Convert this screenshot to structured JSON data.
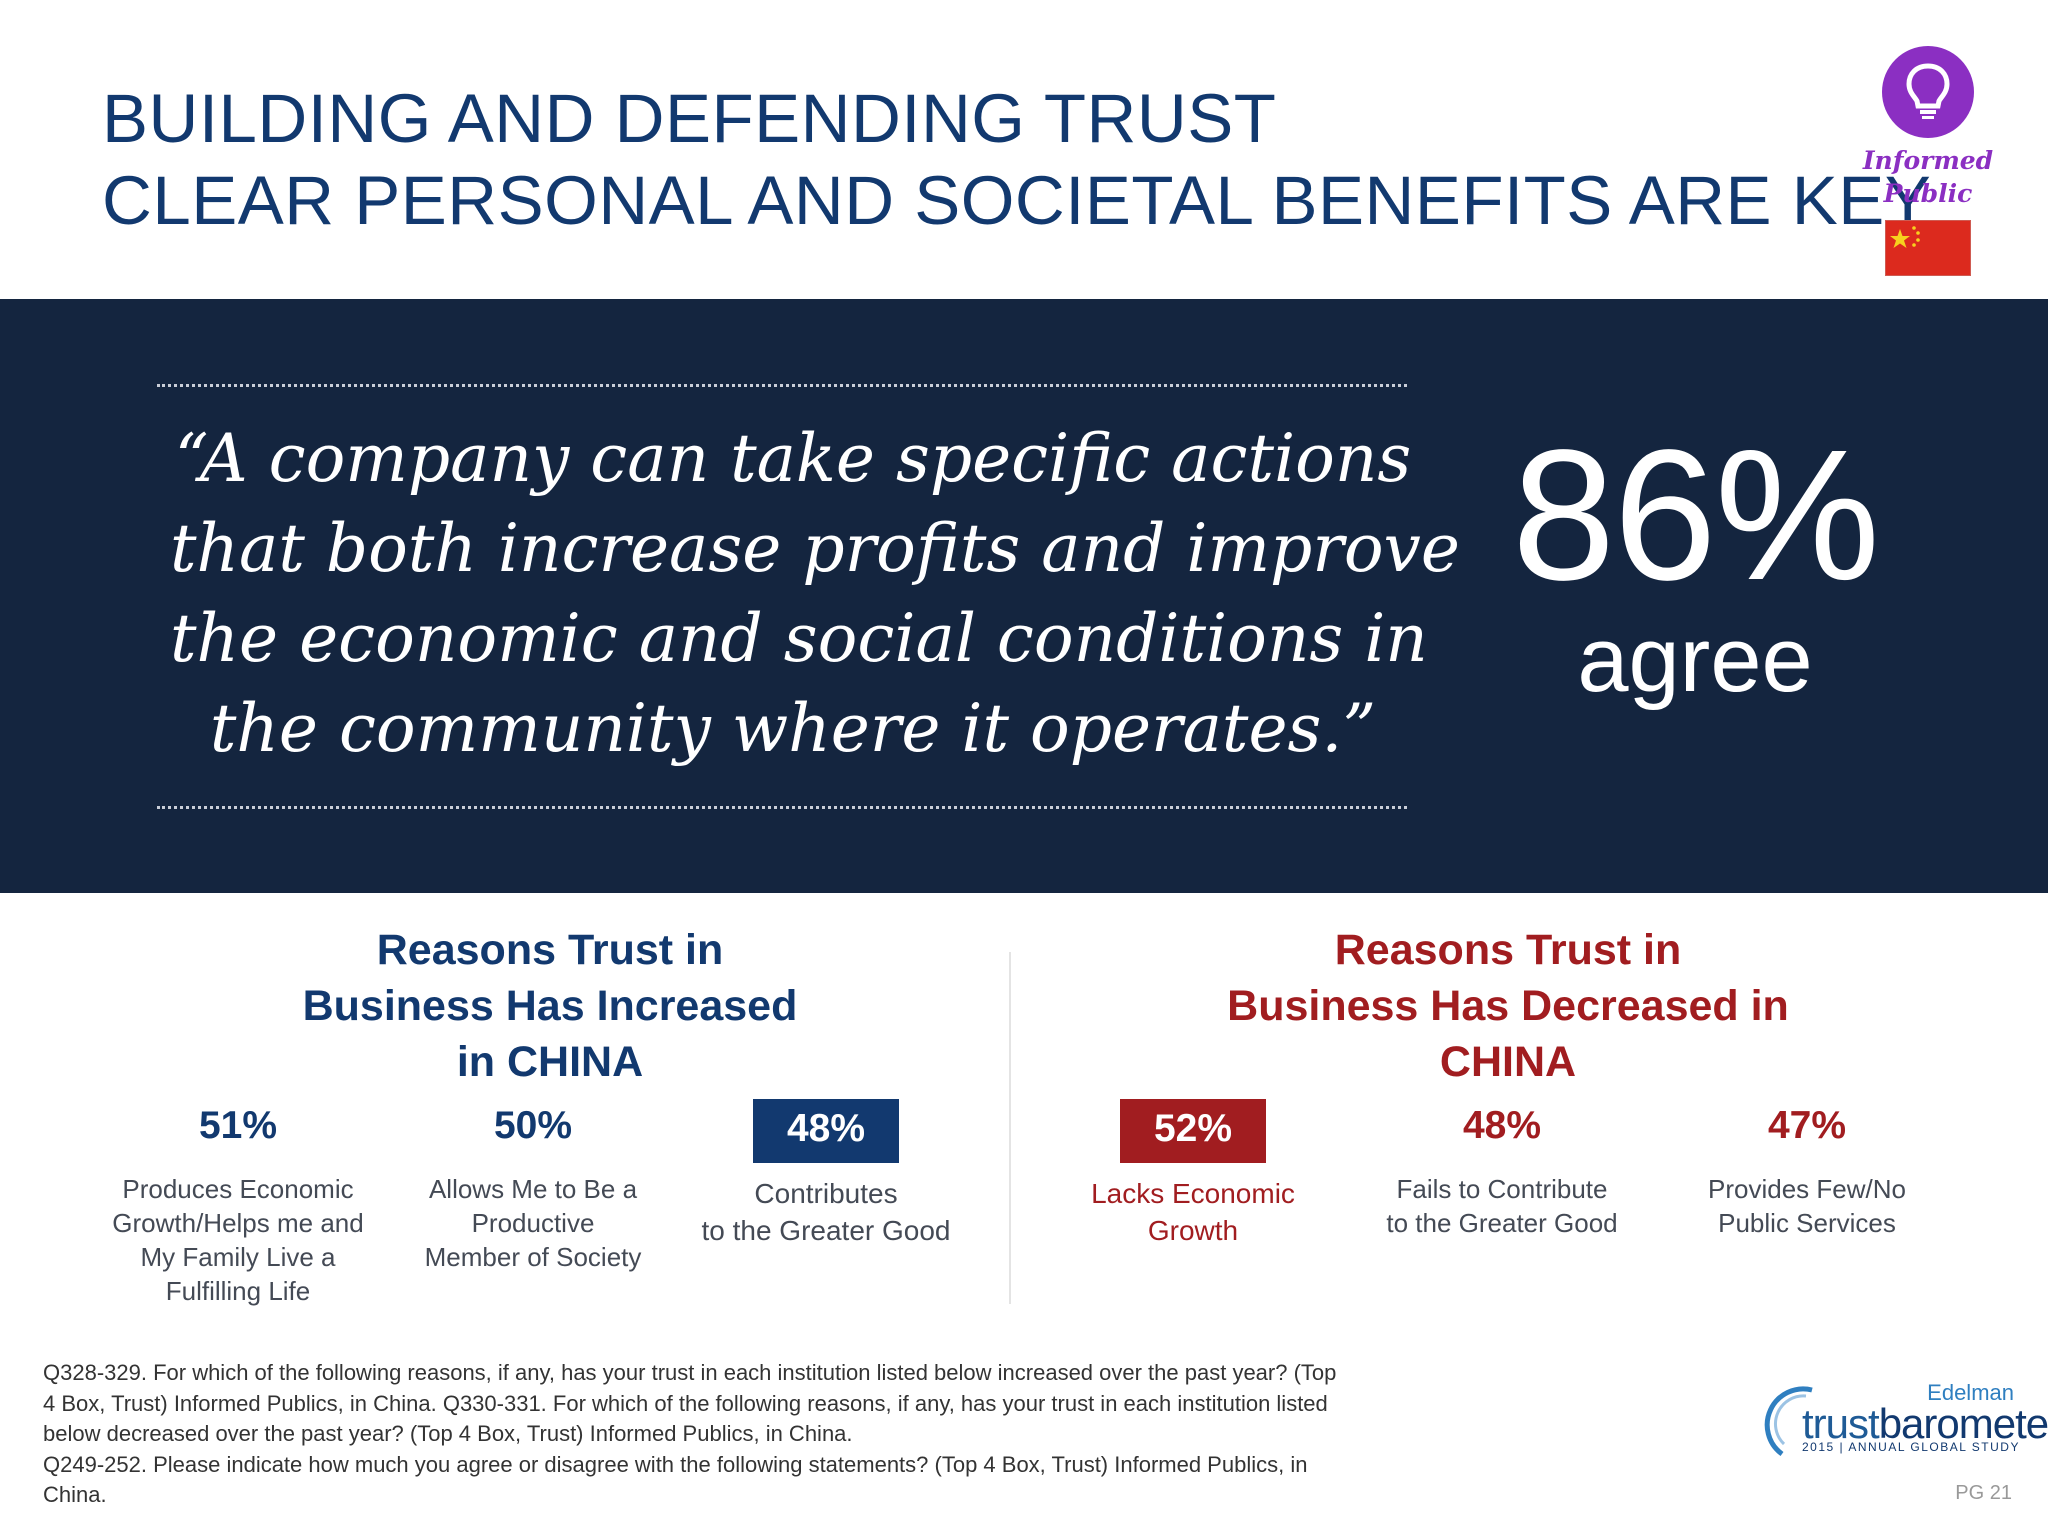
{
  "title": {
    "line1": "BUILDING AND DEFENDING TRUST",
    "line2": "CLEAR PERSONAL AND SOCIETAL BENEFITS ARE KEY"
  },
  "badge": {
    "icon": "lightbulb-icon",
    "line1": "Informed",
    "line2": "Public",
    "flag": "china-flag"
  },
  "quote": {
    "lines": [
      "“A company can take specific actions",
      "that both increase profits and improve",
      "the economic and social conditions in",
      "the community where it operates.”"
    ]
  },
  "headline_stat": {
    "value": "86%",
    "label": "agree"
  },
  "increased": {
    "title_lines": [
      "Reasons Trust in",
      "Business Has Increased",
      "in CHINA"
    ],
    "items": [
      {
        "pct": "51%",
        "desc": [
          "Produces Economic",
          "Growth/Helps me and",
          "My Family Live a",
          "Fulfilling Life"
        ]
      },
      {
        "pct": "50%",
        "desc": [
          "Allows Me to Be a",
          "Productive",
          "Member of Society"
        ]
      },
      {
        "pct": "48%",
        "desc": [
          "Contributes",
          "to the Greater Good"
        ]
      }
    ]
  },
  "decreased": {
    "title_lines": [
      "Reasons Trust in",
      "Business Has Decreased in",
      "CHINA"
    ],
    "items": [
      {
        "pct": "52%",
        "desc": [
          "Lacks Economic",
          "Growth"
        ]
      },
      {
        "pct": "48%",
        "desc": [
          "Fails to Contribute",
          "to the Greater Good"
        ]
      },
      {
        "pct": "47%",
        "desc": [
          "Provides Few/No",
          "Public Services"
        ]
      }
    ]
  },
  "footnote": {
    "lines": [
      "Q328-329. For which of the following reasons, if any, has your trust in each institution listed below increased over the past year?  (Top",
      "4 Box, Trust) Informed Publics, in China. Q330-331. For which of the following reasons, if any, has your trust in each institution listed",
      "below decreased over the past year?  (Top 4 Box, Trust) Informed Publics, in China.",
      "Q249-252. Please indicate how much you agree or disagree with the following statements? (Top 4 Box, Trust) Informed Publics, in",
      "China."
    ]
  },
  "logo": {
    "brand": "Edelman",
    "word_a": "trust",
    "word_b": "barometer",
    "study": "2015  |  ANNUAL GLOBAL STUDY"
  },
  "page": "PG 21",
  "colors": {
    "navy": "#12396f",
    "banner": "#14253f",
    "red": "#a11d20",
    "purple": "#8b2fc2"
  }
}
